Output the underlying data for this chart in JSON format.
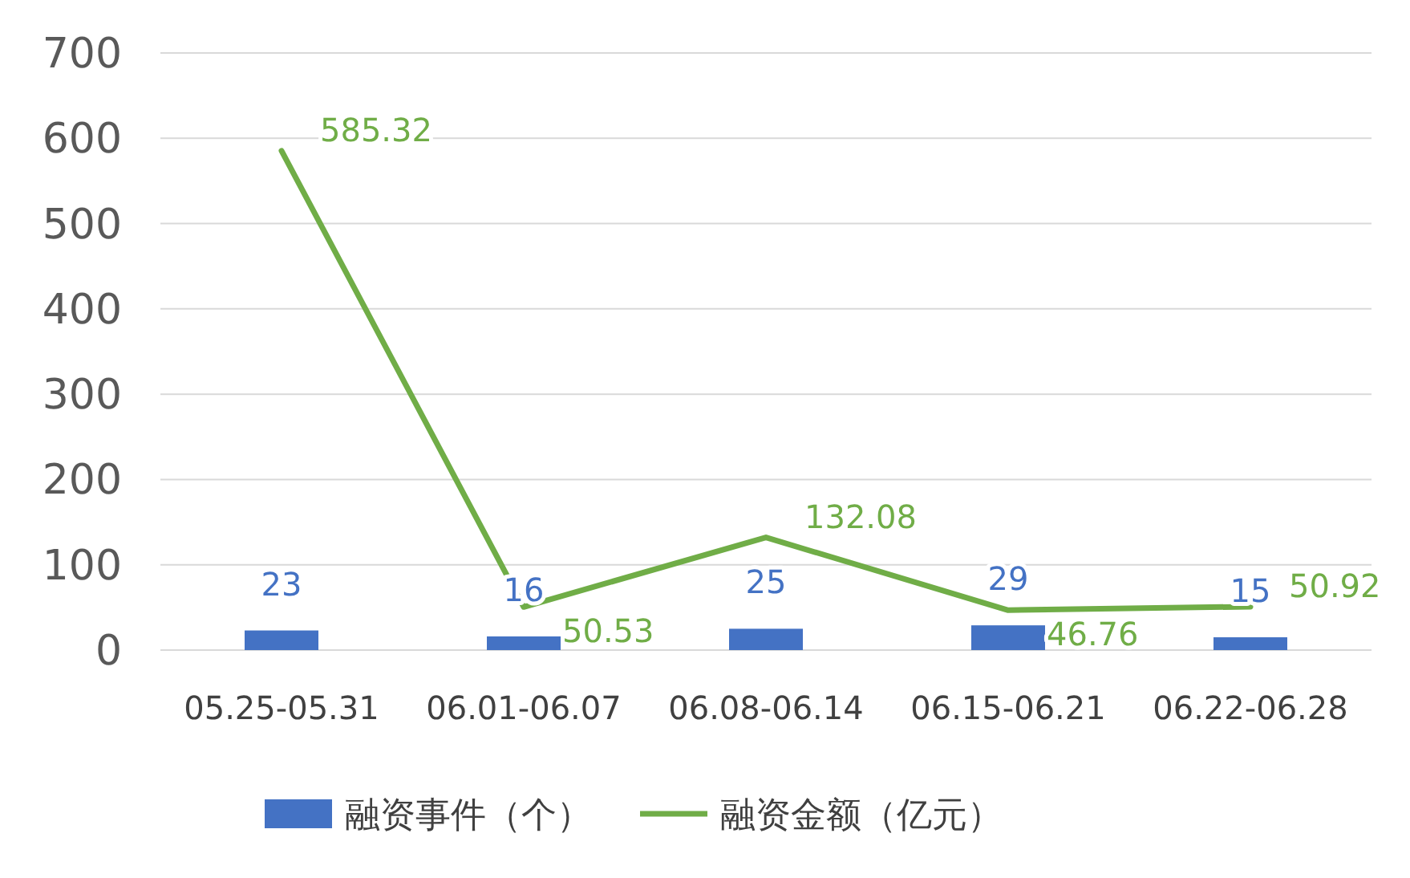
{
  "chart_data": {
    "type": "bar",
    "categories": [
      "05.25-05.31",
      "06.01-06.07",
      "06.08-06.14",
      "06.15-06.21",
      "06.22-06.28"
    ],
    "series": [
      {
        "name": "融资事件（个）",
        "color": "#4472c4",
        "values": [
          23,
          16,
          25,
          29,
          15
        ]
      },
      {
        "name": "融资金额（亿元）",
        "type": "line",
        "color": "#70ad47",
        "values": [
          585.32,
          50.53,
          132.08,
          46.76,
          50.92
        ]
      }
    ],
    "ylim": [
      0,
      700
    ],
    "yticks": [
      0,
      100,
      200,
      300,
      400,
      500,
      600,
      700
    ],
    "grid": "y",
    "legend": "bottom",
    "data_labels": true
  }
}
